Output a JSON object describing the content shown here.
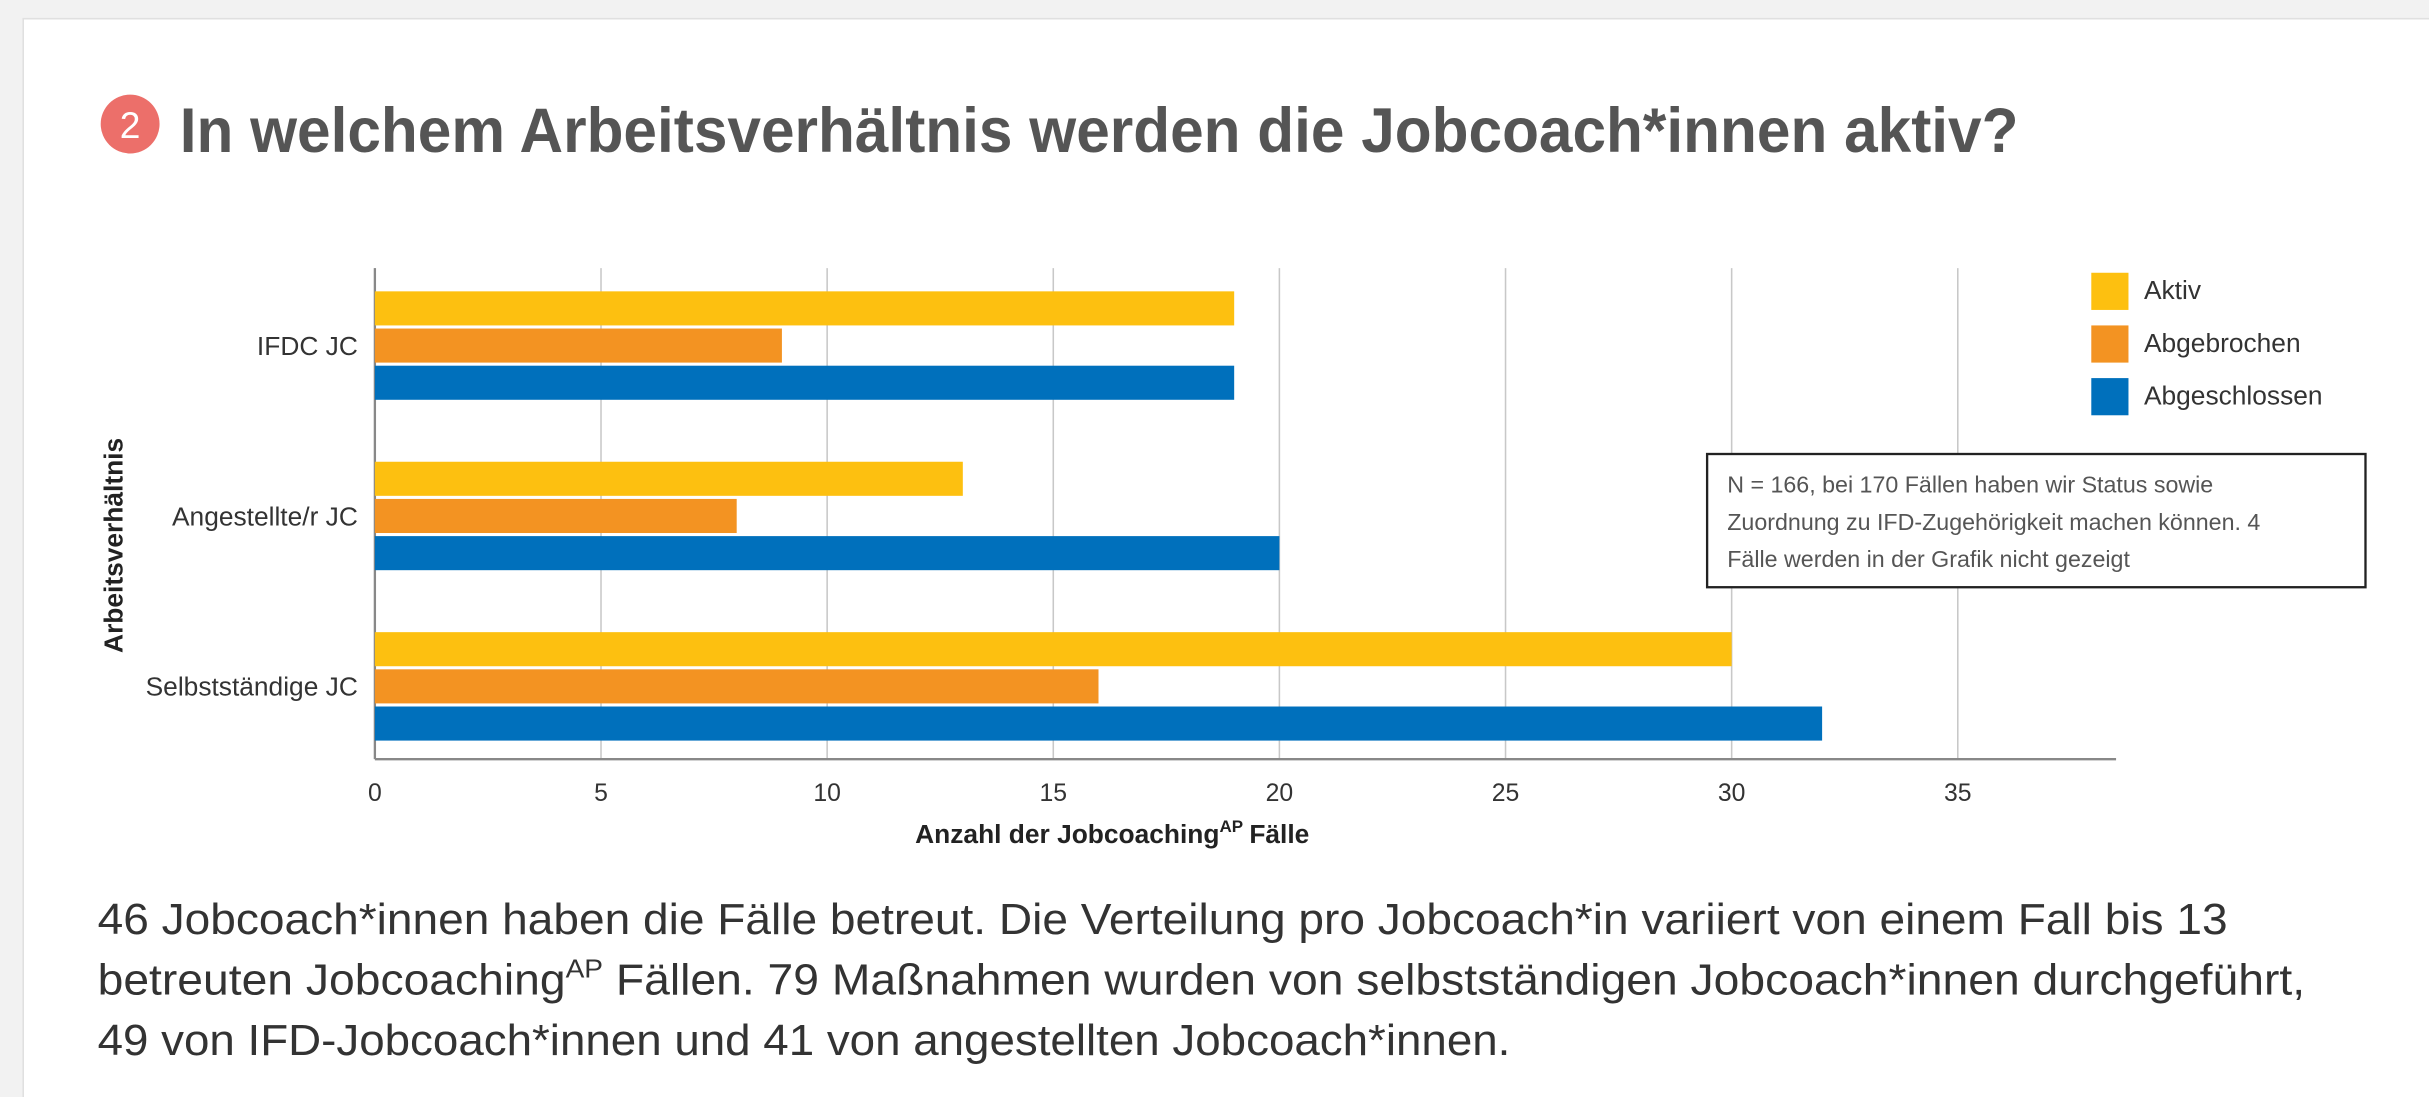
{
  "badge": "2",
  "chart_data": {
    "type": "bar",
    "orientation": "horizontal",
    "title": "In welchem Arbeitsverhältnis werden die Jobcoach*innen aktiv?",
    "categories": [
      "IFDC JC",
      "Angestellte/r JC",
      "Selbstständige JC"
    ],
    "series": [
      {
        "name": "Aktiv",
        "color": "#fdc010",
        "values": [
          19,
          13,
          30
        ]
      },
      {
        "name": "Abgebrochen",
        "color": "#f39322",
        "values": [
          9,
          8,
          16
        ]
      },
      {
        "name": "Abgeschlossen",
        "color": "#0070bc",
        "values": [
          19,
          20,
          32
        ]
      }
    ],
    "xlim": [
      0,
      38.5
    ],
    "xticks": [
      0,
      5,
      10,
      15,
      20,
      25,
      30,
      35
    ],
    "grid": true,
    "legend": "top-right",
    "y_label": "Arbeitsverhältnis",
    "x_label": [
      "Anzahl der Jobcoaching",
      "AP",
      "Fälle"
    ],
    "note": [
      "N = 166,  bei 170 Fällen haben wir Status sowie",
      "Zuordnung zu IFD-Zugehörigkeit machen können. 4",
      "Fälle werden in der Grafik nicht gezeigt"
    ]
  },
  "paragraph": [
    [
      "46 Jobcoach*innen haben die Fälle betreut. Die Verteilung pro Jobcoach*in variiert von einem Fall bis 13"
    ],
    [
      "betreuten Jobcoaching",
      "AP",
      " Fällen. 79 Maßnahmen wurden von selbstständigen Jobcoach*innen durchgeführt,"
    ],
    [
      "49 von IFD-Jobcoach*innen und 41 von angestellten Jobcoach*innen."
    ]
  ]
}
